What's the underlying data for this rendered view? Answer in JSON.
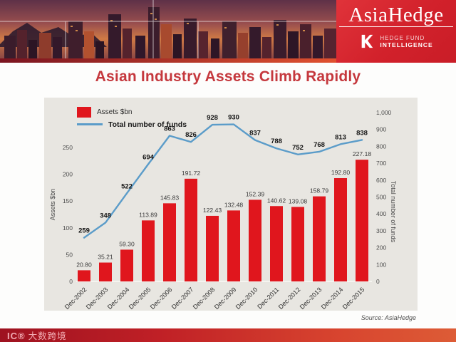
{
  "header": {
    "brand": "AsiaHedge",
    "logo_line1": "HEDGE FUND",
    "logo_line2": "INTELLIGENCE"
  },
  "title": "Asian Industry Assets Climb Rapidly",
  "source": "Source: AsiaHedge",
  "watermark": {
    "logo": "IC®",
    "text": "大数跨境"
  },
  "colors": {
    "bar_red": "#e0161d",
    "line_blue": "#5b9cc9",
    "title_red": "#c5383d",
    "header_red": "#d2212b",
    "panel_gray": "#e8e6e1"
  },
  "chart_data": {
    "type": "bar+line",
    "title": "Asian Industry Assets Climb Rapidly",
    "grid": false,
    "legend_position": "top-left",
    "categories": [
      "Dec-2002",
      "Dec-2003",
      "Dec-2004",
      "Dec-2005",
      "Dec-2006",
      "Dec-2007",
      "Dec-2008",
      "Dec-2009",
      "Dec-2010",
      "Dec-2011",
      "Dec-2012",
      "Dec-2013",
      "Dec-2014",
      "Dec-2015"
    ],
    "series": [
      {
        "name": "Assets $bn",
        "type": "bar",
        "axis": "left",
        "color": "#e0161d",
        "values": [
          20.8,
          35.21,
          59.3,
          113.89,
          145.83,
          191.72,
          122.43,
          132.48,
          152.39,
          140.62,
          139.08,
          158.79,
          192.8,
          227.18
        ],
        "labels": [
          "20.80",
          "35.21",
          "59.30",
          "113.89",
          "145.83",
          "191.72",
          "122.43",
          "132.48",
          "152.39",
          "140.62",
          "139.08",
          "158.79",
          "192.80",
          "227.18"
        ]
      },
      {
        "name": "Total number of funds",
        "type": "line",
        "axis": "right",
        "color": "#5b9cc9",
        "values": [
          259,
          348,
          522,
          694,
          863,
          826,
          928,
          930,
          837,
          788,
          752,
          768,
          813,
          838
        ],
        "labels": [
          "259",
          "348",
          "522",
          "694",
          "863",
          "826",
          "928",
          "930",
          "837",
          "788",
          "752",
          "768",
          "813",
          "838"
        ]
      }
    ],
    "left_axis": {
      "label": "Assets $bn",
      "min": 0,
      "max": 250,
      "step": 50
    },
    "right_axis": {
      "label": "Total number of funds",
      "min": 0,
      "max": 1000,
      "step": 100
    }
  }
}
